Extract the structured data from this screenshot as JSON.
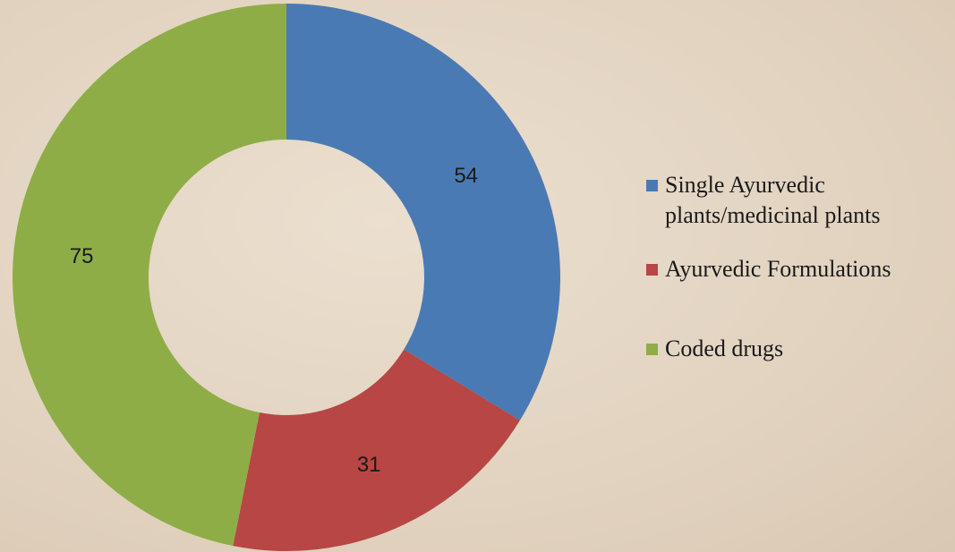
{
  "chart_data": {
    "type": "donut",
    "categories": [
      "Single Ayurvedic plants/medicinal plants",
      "Ayurvedic Formulations",
      "Coded drugs"
    ],
    "values": [
      54,
      31,
      75
    ],
    "colors": [
      "#4a7ab3",
      "#b84644",
      "#8fad47"
    ],
    "legend": "right"
  }
}
